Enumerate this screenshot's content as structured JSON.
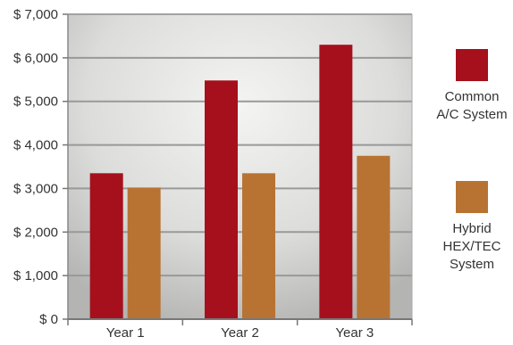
{
  "chart_data": {
    "type": "bar",
    "title": "",
    "xlabel": "",
    "ylabel": "",
    "categories": [
      "Year 1",
      "Year 2",
      "Year 3"
    ],
    "series": [
      {
        "name": "Common A/C System",
        "name_lines": [
          "Common",
          "A/C System"
        ],
        "color": "#a5101c",
        "values": [
          3350,
          5480,
          6300
        ]
      },
      {
        "name": "Hybrid HEX/TEC System",
        "name_lines": [
          "Hybrid",
          "HEX/TEC",
          "System"
        ],
        "color": "#b87333",
        "values": [
          3020,
          3350,
          3750
        ]
      }
    ],
    "ylim": [
      0,
      7000
    ],
    "yticks": [
      0,
      1000,
      2000,
      3000,
      4000,
      5000,
      6000,
      7000
    ],
    "ytick_labels": [
      "$ 0",
      "$ 1,000",
      "$ 2,000",
      "$ 3,000",
      "$ 4,000",
      "$ 5,000",
      "$ 6,000",
      "$ 7,000"
    ],
    "grid": true,
    "legend_position": "right",
    "colors": {
      "grid": "#999999",
      "plot_bg_center": "#f4f4f2",
      "plot_bg_edge": "#b8b8b6"
    }
  }
}
